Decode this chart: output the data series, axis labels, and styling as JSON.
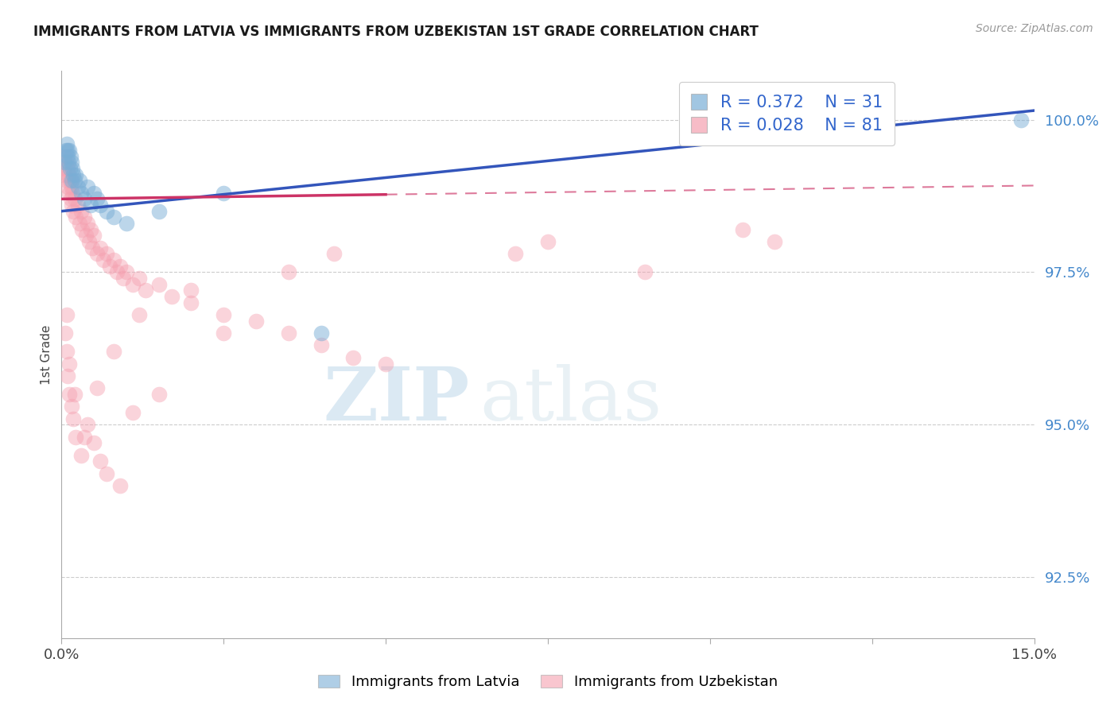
{
  "title": "IMMIGRANTS FROM LATVIA VS IMMIGRANTS FROM UZBEKISTAN 1ST GRADE CORRELATION CHART",
  "source": "Source: ZipAtlas.com",
  "ylabel": "1st Grade",
  "right_yticks": [
    92.5,
    95.0,
    97.5,
    100.0
  ],
  "right_ylabels": [
    "92.5%",
    "95.0%",
    "97.5%",
    "100.0%"
  ],
  "xmin": 0.0,
  "xmax": 15.0,
  "ymin": 91.5,
  "ymax": 100.8,
  "legend_R_latvia": "R = 0.372",
  "legend_N_latvia": "N = 31",
  "legend_R_uzbekistan": "R = 0.028",
  "legend_N_uzbekistan": "N = 81",
  "latvia_color": "#7aaed6",
  "uzbekistan_color": "#f5a0b0",
  "trendline_latvia_color": "#3355bb",
  "trendline_uzbekistan_color": "#cc3366",
  "watermark_zip": "ZIP",
  "watermark_atlas": "atlas",
  "legend_label_latvia": "Immigrants from Latvia",
  "legend_label_uzbekistan": "Immigrants from Uzbekistan",
  "trendline_solid_cutoff": 5.0,
  "latvia_x": [
    0.05,
    0.07,
    0.08,
    0.09,
    0.1,
    0.11,
    0.12,
    0.13,
    0.14,
    0.15,
    0.16,
    0.17,
    0.18,
    0.2,
    0.22,
    0.25,
    0.28,
    0.3,
    0.35,
    0.4,
    0.45,
    0.5,
    0.55,
    0.6,
    0.7,
    0.8,
    1.0,
    1.5,
    2.5,
    4.0,
    14.8
  ],
  "latvia_y": [
    99.3,
    99.5,
    99.6,
    99.4,
    99.5,
    99.3,
    99.5,
    99.2,
    99.4,
    99.3,
    99.0,
    99.2,
    99.1,
    99.0,
    99.1,
    98.9,
    99.0,
    98.8,
    98.7,
    98.9,
    98.6,
    98.8,
    98.7,
    98.6,
    98.5,
    98.4,
    98.3,
    98.5,
    98.8,
    96.5,
    100.0
  ],
  "uzbekistan_x": [
    0.04,
    0.05,
    0.06,
    0.07,
    0.08,
    0.09,
    0.1,
    0.11,
    0.12,
    0.13,
    0.14,
    0.15,
    0.16,
    0.17,
    0.18,
    0.2,
    0.22,
    0.25,
    0.28,
    0.3,
    0.32,
    0.35,
    0.38,
    0.4,
    0.42,
    0.45,
    0.48,
    0.5,
    0.55,
    0.6,
    0.65,
    0.7,
    0.75,
    0.8,
    0.85,
    0.9,
    0.95,
    1.0,
    1.1,
    1.2,
    1.3,
    1.5,
    1.7,
    2.0,
    2.5,
    3.0,
    3.5,
    4.0,
    4.5,
    5.0,
    0.06,
    0.08,
    0.1,
    0.12,
    0.15,
    0.18,
    0.22,
    0.3,
    0.4,
    0.5,
    0.6,
    0.7,
    0.9,
    1.1,
    1.5,
    2.5,
    4.2,
    7.5,
    9.0,
    10.5,
    0.08,
    0.12,
    0.2,
    0.35,
    0.55,
    0.8,
    1.2,
    2.0,
    3.5,
    7.0,
    11.0
  ],
  "uzbekistan_y": [
    99.2,
    99.4,
    99.1,
    99.3,
    99.0,
    99.2,
    98.9,
    99.1,
    98.8,
    99.0,
    98.7,
    98.9,
    98.6,
    98.8,
    98.5,
    98.7,
    98.4,
    98.6,
    98.3,
    98.5,
    98.2,
    98.4,
    98.1,
    98.3,
    98.0,
    98.2,
    97.9,
    98.1,
    97.8,
    97.9,
    97.7,
    97.8,
    97.6,
    97.7,
    97.5,
    97.6,
    97.4,
    97.5,
    97.3,
    97.4,
    97.2,
    97.3,
    97.1,
    97.0,
    96.8,
    96.7,
    96.5,
    96.3,
    96.1,
    96.0,
    96.5,
    96.2,
    95.8,
    95.5,
    95.3,
    95.1,
    94.8,
    94.5,
    95.0,
    94.7,
    94.4,
    94.2,
    94.0,
    95.2,
    95.5,
    96.5,
    97.8,
    98.0,
    97.5,
    98.2,
    96.8,
    96.0,
    95.5,
    94.8,
    95.6,
    96.2,
    96.8,
    97.2,
    97.5,
    97.8,
    98.0
  ]
}
